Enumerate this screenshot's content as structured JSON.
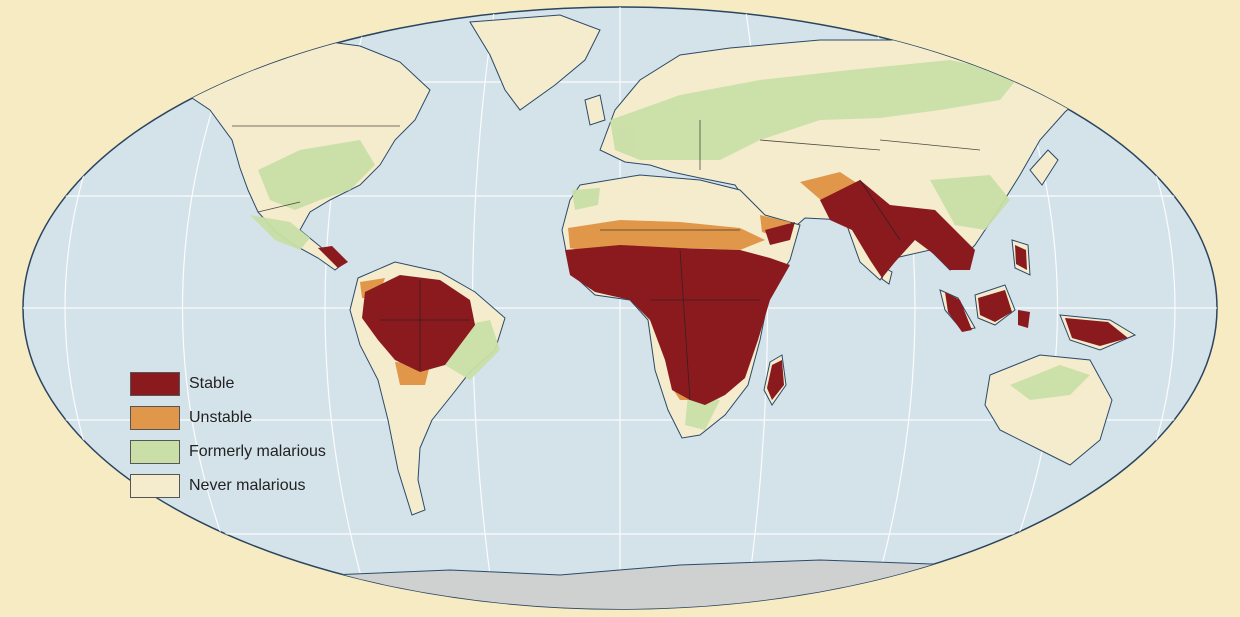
{
  "colors": {
    "background": "#f7ebc4",
    "ocean": "#d4e2ea",
    "antarctica": "#cfd0d0",
    "graticule": "#ffffff",
    "border": "#222222"
  },
  "legend": {
    "items": [
      {
        "label": "Stable",
        "color": "#8b1a1f"
      },
      {
        "label": "Unstable",
        "color": "#e0974a"
      },
      {
        "label": "Formerly malarious",
        "color": "#c9dfa7"
      },
      {
        "label": "Never malarious",
        "color": "#f4eccc"
      }
    ]
  }
}
